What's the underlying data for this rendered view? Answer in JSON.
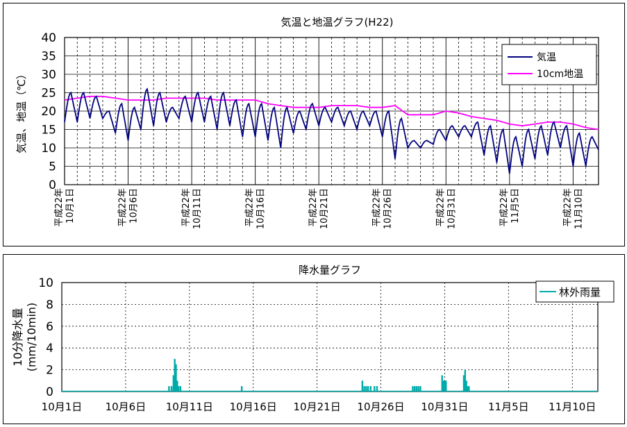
{
  "chart_data": [
    {
      "type": "line",
      "title": "気温と地温グラフ(H22)",
      "ylabel": "気温、地温（℃）",
      "xlabel": "",
      "ylim": [
        0,
        40
      ],
      "yticks": [
        0,
        5,
        10,
        15,
        20,
        25,
        30,
        35,
        40
      ],
      "x_range": [
        0,
        42
      ],
      "x_tick_labels": [
        {
          "x": 0,
          "line1": "平成22年",
          "line2": "10月1日"
        },
        {
          "x": 5,
          "line1": "平成22年",
          "line2": "10月6日"
        },
        {
          "x": 10,
          "line1": "平成22年",
          "line2": "10月11日"
        },
        {
          "x": 15,
          "line1": "平成22年",
          "line2": "10月16日"
        },
        {
          "x": 20,
          "line1": "平成22年",
          "line2": "10月21日"
        },
        {
          "x": 25,
          "line1": "平成22年",
          "line2": "10月26日"
        },
        {
          "x": 30,
          "line1": "平成22年",
          "line2": "10月31日"
        },
        {
          "x": 35,
          "line1": "平成22年",
          "line2": "11月5日"
        },
        {
          "x": 40,
          "line1": "平成22年",
          "line2": "11月10日"
        }
      ],
      "legend_position": "top-right",
      "grid": true,
      "series": [
        {
          "name": "気温",
          "color": "#000080",
          "daily": [
            {
              "min": 17,
              "max": 25
            },
            {
              "min": 17,
              "max": 25
            },
            {
              "min": 18,
              "max": 24
            },
            {
              "min": 18,
              "max": 20
            },
            {
              "min": 14,
              "max": 22
            },
            {
              "min": 12,
              "max": 21
            },
            {
              "min": 15,
              "max": 26
            },
            {
              "min": 16,
              "max": 25
            },
            {
              "min": 17,
              "max": 21
            },
            {
              "min": 18,
              "max": 24
            },
            {
              "min": 17,
              "max": 25
            },
            {
              "min": 17,
              "max": 24
            },
            {
              "min": 15,
              "max": 25
            },
            {
              "min": 16,
              "max": 23
            },
            {
              "min": 13,
              "max": 22
            },
            {
              "min": 13,
              "max": 22
            },
            {
              "min": 12,
              "max": 21
            },
            {
              "min": 10,
              "max": 21
            },
            {
              "min": 14,
              "max": 20
            },
            {
              "min": 15,
              "max": 22
            },
            {
              "min": 16,
              "max": 21
            },
            {
              "min": 17,
              "max": 21
            },
            {
              "min": 16,
              "max": 20
            },
            {
              "min": 15,
              "max": 20
            },
            {
              "min": 16,
              "max": 20
            },
            {
              "min": 13,
              "max": 20
            },
            {
              "min": 7,
              "max": 18
            },
            {
              "min": 10,
              "max": 12
            },
            {
              "min": 10,
              "max": 12
            },
            {
              "min": 11,
              "max": 15
            },
            {
              "min": 12,
              "max": 16
            },
            {
              "min": 13,
              "max": 16
            },
            {
              "min": 13,
              "max": 17
            },
            {
              "min": 8,
              "max": 16
            },
            {
              "min": 6,
              "max": 15
            },
            {
              "min": 3,
              "max": 13
            },
            {
              "min": 5,
              "max": 15
            },
            {
              "min": 7,
              "max": 16
            },
            {
              "min": 8,
              "max": 17
            },
            {
              "min": 10,
              "max": 16
            },
            {
              "min": 5,
              "max": 14
            },
            {
              "min": 5,
              "max": 13
            }
          ],
          "end_value": 9.5
        },
        {
          "name": "10cm地温",
          "color": "#ff00ff",
          "x": [
            0,
            1,
            2,
            3,
            4,
            5,
            6,
            7,
            8,
            9,
            10,
            11,
            12,
            13,
            14,
            15,
            16,
            17,
            18,
            19,
            20,
            21,
            22,
            23,
            24,
            25,
            26,
            27,
            28,
            29,
            30,
            31,
            32,
            33,
            34,
            35,
            36,
            37,
            38,
            39,
            40,
            41,
            42
          ],
          "values": [
            23,
            23.5,
            24,
            24,
            23.5,
            23,
            23,
            23,
            23.5,
            23.5,
            23.5,
            23.5,
            23,
            23,
            23,
            23,
            22,
            21.5,
            21,
            21,
            21,
            21.5,
            21.5,
            21.5,
            21,
            21,
            21.5,
            19,
            19,
            19,
            20,
            19.5,
            18.5,
            18,
            17.5,
            16.5,
            16,
            16.5,
            17,
            17,
            16.5,
            15.5,
            15
          ]
        }
      ]
    },
    {
      "type": "bar",
      "title": "降水量グラフ",
      "ylabel": "10分降水量\n(mm/10min)",
      "xlabel": "",
      "ylim": [
        0,
        10
      ],
      "yticks": [
        0,
        2,
        4,
        6,
        8,
        10
      ],
      "x_range": [
        0,
        42
      ],
      "x_tick_labels": [
        {
          "x": 0,
          "label": "10月1日"
        },
        {
          "x": 5,
          "label": "10月6日"
        },
        {
          "x": 10,
          "label": "10月11日"
        },
        {
          "x": 15,
          "label": "10月16日"
        },
        {
          "x": 20,
          "label": "10月21日"
        },
        {
          "x": 25,
          "label": "10月26日"
        },
        {
          "x": 30,
          "label": "10月31日"
        },
        {
          "x": 35,
          "label": "11月5日"
        },
        {
          "x": 40,
          "label": "11月10日"
        }
      ],
      "legend_position": "top-right",
      "grid": true,
      "series": [
        {
          "name": "林外雨量",
          "color": "#00aaaa",
          "x": [
            8.4,
            8.6,
            8.75,
            8.85,
            8.95,
            9.05,
            9.15,
            9.3,
            14.1,
            23.55,
            23.7,
            23.85,
            24.0,
            24.2,
            24.5,
            24.7,
            27.5,
            27.65,
            27.8,
            27.95,
            28.1,
            29.8,
            29.9,
            30.0,
            30.1,
            31.5,
            31.6,
            31.7,
            31.8,
            31.9
          ],
          "values": [
            0.5,
            0.5,
            1.5,
            3.0,
            2.5,
            1.0,
            0.5,
            0.5,
            0.5,
            1.0,
            0.5,
            0.5,
            0.5,
            0.5,
            0.5,
            0.5,
            0.5,
            0.5,
            0.5,
            0.5,
            0.5,
            1.5,
            1.0,
            1.0,
            1.0,
            1.5,
            2.0,
            1.0,
            0.5,
            0.5
          ]
        }
      ]
    }
  ]
}
